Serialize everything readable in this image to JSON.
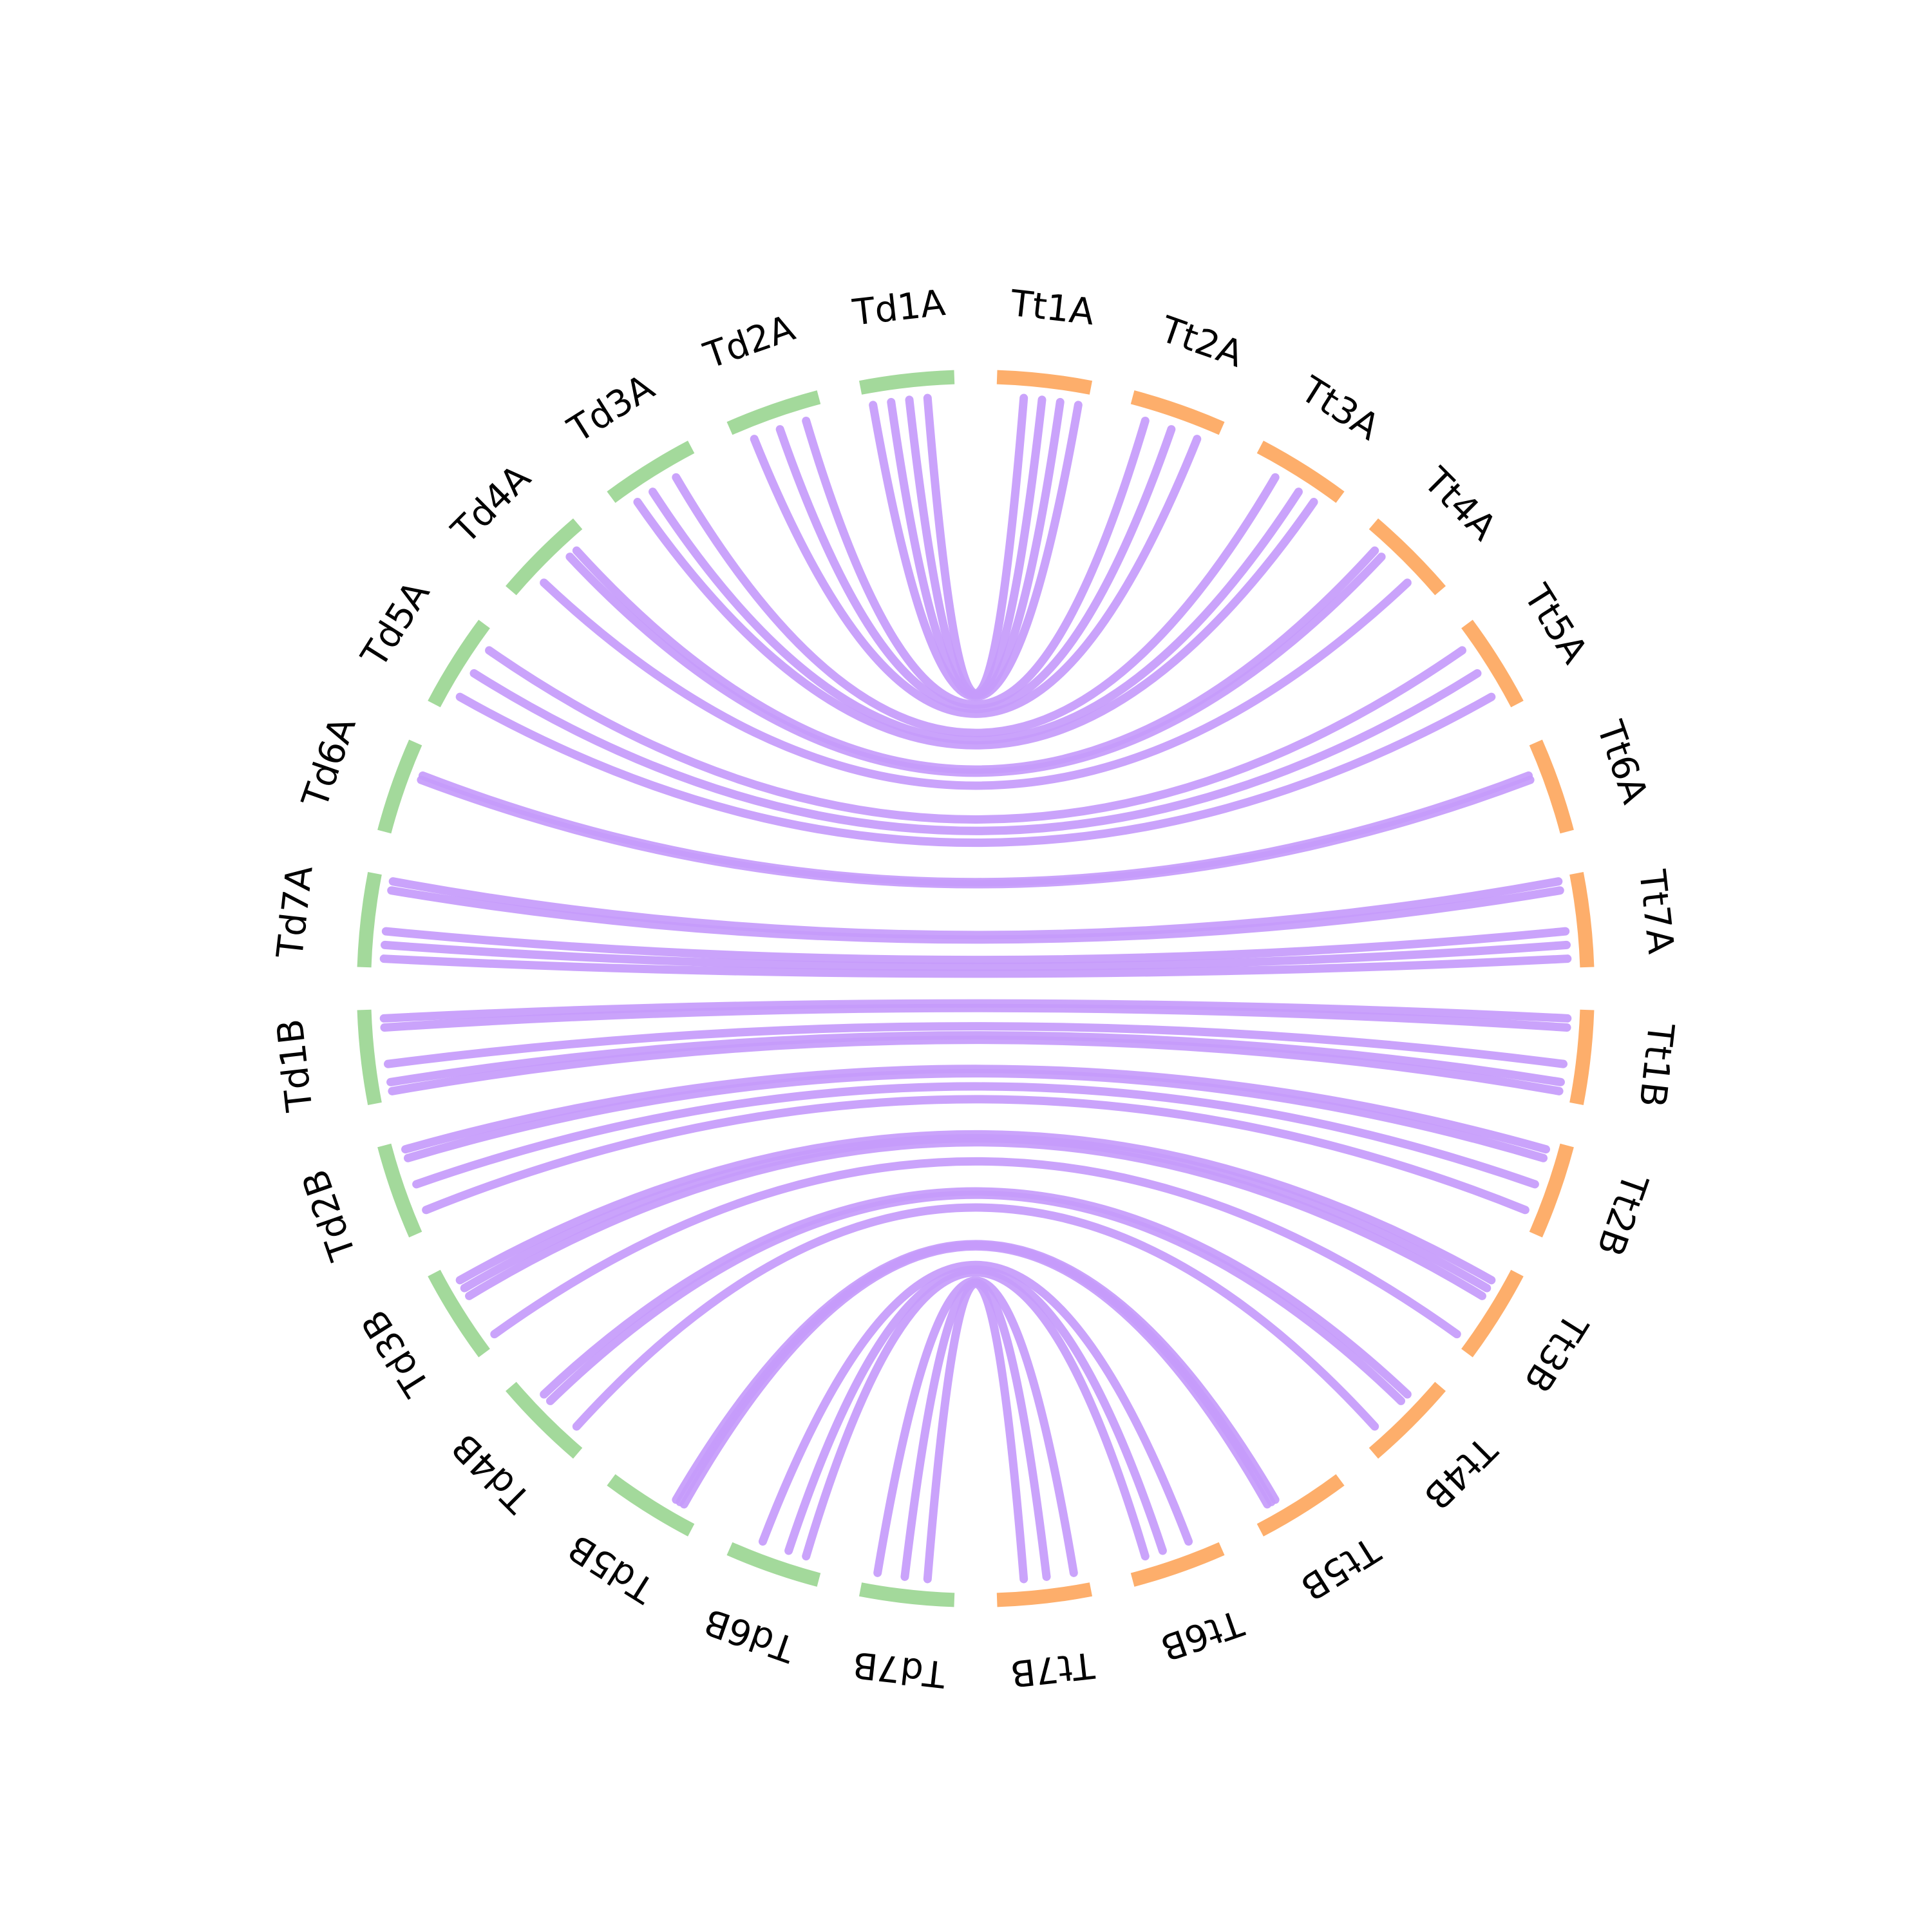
{
  "diagram": {
    "type": "circos",
    "colors": {
      "group_td": "#a3d99b",
      "group_tt": "#fdae6b",
      "link": "#c69bfb"
    },
    "segments": [
      {
        "id": "Td1A",
        "label": "Td1A",
        "group": "td"
      },
      {
        "id": "Td2A",
        "label": "Td2A",
        "group": "td"
      },
      {
        "id": "Td3A",
        "label": "Td3A",
        "group": "td"
      },
      {
        "id": "Td4A",
        "label": "Td4A",
        "group": "td"
      },
      {
        "id": "Td5A",
        "label": "Td5A",
        "group": "td"
      },
      {
        "id": "Td6A",
        "label": "Td6A",
        "group": "td"
      },
      {
        "id": "Td7A",
        "label": "Td7A",
        "group": "td"
      },
      {
        "id": "Td1B",
        "label": "Td1B",
        "group": "td"
      },
      {
        "id": "Td2B",
        "label": "Td2B",
        "group": "td"
      },
      {
        "id": "Td3B",
        "label": "Td3B",
        "group": "td"
      },
      {
        "id": "Td4B",
        "label": "Td4B",
        "group": "td"
      },
      {
        "id": "Td5B",
        "label": "Td5B",
        "group": "td"
      },
      {
        "id": "Td6B",
        "label": "Td6B",
        "group": "td"
      },
      {
        "id": "Td7B",
        "label": "Td7B",
        "group": "td"
      },
      {
        "id": "Tt7B",
        "label": "Tt7B",
        "group": "tt"
      },
      {
        "id": "Tt6B",
        "label": "Tt6B",
        "group": "tt"
      },
      {
        "id": "Tt5B",
        "label": "Tt5B",
        "group": "tt"
      },
      {
        "id": "Tt4B",
        "label": "Tt4B",
        "group": "tt"
      },
      {
        "id": "Tt3B",
        "label": "Tt3B",
        "group": "tt"
      },
      {
        "id": "Tt2B",
        "label": "Tt2B",
        "group": "tt"
      },
      {
        "id": "Tt1B",
        "label": "Tt1B",
        "group": "tt"
      },
      {
        "id": "Tt7A",
        "label": "Tt7A",
        "group": "tt"
      },
      {
        "id": "Tt6A",
        "label": "Tt6A",
        "group": "tt"
      },
      {
        "id": "Tt5A",
        "label": "Tt5A",
        "group": "tt"
      },
      {
        "id": "Tt4A",
        "label": "Tt4A",
        "group": "tt"
      },
      {
        "id": "Tt3A",
        "label": "Tt3A",
        "group": "tt"
      },
      {
        "id": "Tt2A",
        "label": "Tt2A",
        "group": "tt"
      },
      {
        "id": "Tt1A",
        "label": "Tt1A",
        "group": "tt"
      }
    ],
    "links": [
      [
        "Td1A",
        "Tt1A",
        0.9
      ],
      [
        "Td1A",
        "Tt1A",
        0.7
      ],
      [
        "Td1A",
        "Tt1A",
        0.5
      ],
      [
        "Td1A",
        "Tt1A",
        0.3
      ],
      [
        "Td2A",
        "Tt2A",
        0.5
      ],
      [
        "Td2A",
        "Tt2A",
        0.2
      ],
      [
        "Td2A",
        "Tt2A",
        0.8
      ],
      [
        "Td3A",
        "Tt3A",
        0.8
      ],
      [
        "Td3A",
        "Tt3A",
        0.6
      ],
      [
        "Td3A",
        "Tt3A",
        0.3
      ],
      [
        "Td4A",
        "Tt4A",
        0.7
      ],
      [
        "Td4A",
        "Tt4A",
        0.3
      ],
      [
        "Td4A",
        "Tt4A",
        0.2
      ],
      [
        "Td5A",
        "Tt5A",
        0.2
      ],
      [
        "Td5A",
        "Tt5A",
        0.5
      ],
      [
        "Td5A",
        "Tt5A",
        0.8
      ],
      [
        "Td6A",
        "Tt6A",
        0.3
      ],
      [
        "Td6A",
        "Tt6A",
        0.35
      ],
      [
        "Td7A",
        "Tt7A",
        0.9
      ],
      [
        "Td7A",
        "Tt7A",
        0.75
      ],
      [
        "Td7A",
        "Tt7A",
        0.6
      ],
      [
        "Td7A",
        "Tt7A",
        0.15
      ],
      [
        "Td7A",
        "Tt7A",
        0.05
      ],
      [
        "Td1B",
        "Tt1B",
        0.9
      ],
      [
        "Td1B",
        "Tt1B",
        0.8
      ],
      [
        "Td1B",
        "Tt1B",
        0.6
      ],
      [
        "Td1B",
        "Tt1B",
        0.2
      ],
      [
        "Td1B",
        "Tt1B",
        0.1
      ],
      [
        "Td2B",
        "Tt2B",
        0.1
      ],
      [
        "Td2B",
        "Tt2B",
        0.2
      ],
      [
        "Td2B",
        "Tt2B",
        0.5
      ],
      [
        "Td2B",
        "Tt2B",
        0.8
      ],
      [
        "Td3B",
        "Tt3B",
        0.2
      ],
      [
        "Td3B",
        "Tt3B",
        0.3
      ],
      [
        "Td3B",
        "Tt3B",
        0.4
      ],
      [
        "Td3B",
        "Tt3B",
        0.9
      ],
      [
        "Td4B",
        "Tt4B",
        0.3
      ],
      [
        "Td4B",
        "Tt4B",
        0.4
      ],
      [
        "Td4B",
        "Tt4B",
        0.8
      ],
      [
        "Td5B",
        "Tt5B",
        0.7
      ],
      [
        "Td5B",
        "Tt5B",
        0.75
      ],
      [
        "Td5B",
        "Tt5B",
        0.8
      ],
      [
        "Td6B",
        "Tt6B",
        0.3
      ],
      [
        "Td6B",
        "Tt6B",
        0.6
      ],
      [
        "Td6B",
        "Tt6B",
        0.8
      ],
      [
        "Td7B",
        "Tt7B",
        0.15
      ],
      [
        "Td7B",
        "Tt7B",
        0.45
      ],
      [
        "Td7B",
        "Tt7B",
        0.7
      ]
    ]
  }
}
